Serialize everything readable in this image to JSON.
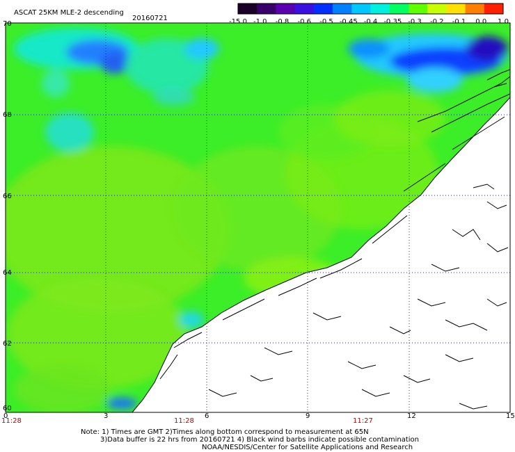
{
  "title": {
    "product": "ASCAT 25KM MLE-2 descending",
    "date": "20160721"
  },
  "colorbar": {
    "labels": [
      "-15.0",
      "-1.0",
      "-0.8",
      "-0.6",
      "-0.5",
      "-0.45",
      "-0.4",
      "-0.35",
      "-0.3",
      "-0.2",
      "-0.1",
      "0.0",
      "1.0"
    ],
    "colors": [
      "#1a0026",
      "#3a006a",
      "#5a00b0",
      "#3a10e0",
      "#0030ff",
      "#0080ff",
      "#00c8ff",
      "#00f0e0",
      "#00ff60",
      "#60ff00",
      "#c8ff00",
      "#ffe000",
      "#ff8000",
      "#ff2000"
    ]
  },
  "axes": {
    "lat_labels": [
      "70",
      "68",
      "66",
      "64",
      "62",
      "60"
    ],
    "lon_labels": [
      "0",
      "3",
      "6",
      "9",
      "12",
      "15"
    ],
    "time_labels": [
      "11:28",
      "11:28",
      "11:27"
    ]
  },
  "notes": {
    "line1": "Note: 1) Times are GMT 2)Times along bottom correspond to measurement at 65N",
    "line2": "3)Data buffer is 22 hrs from 20160721 4) Black wind barbs indicate possible contamination",
    "line3": "NOAA/NESDIS/Center for Satellite Applications and Research"
  }
}
